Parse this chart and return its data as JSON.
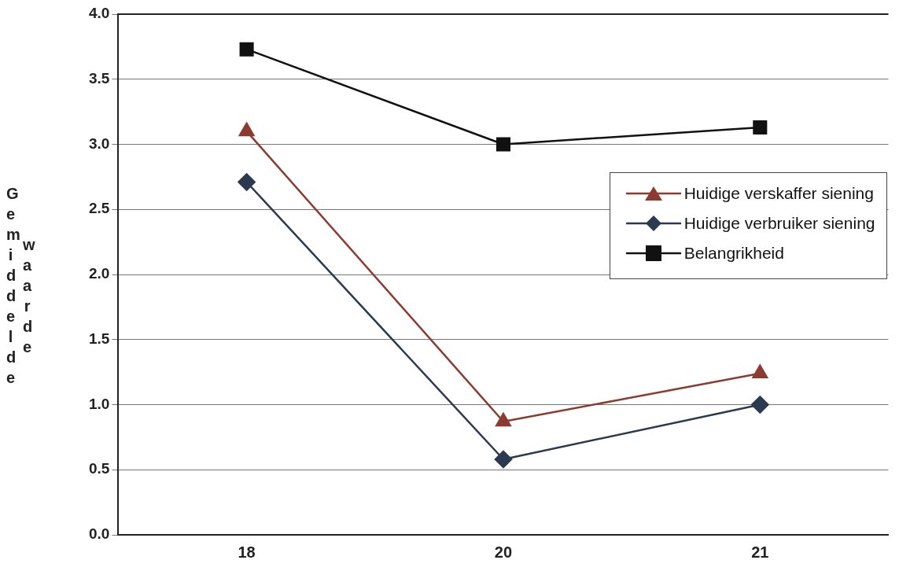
{
  "chart_data": {
    "type": "line",
    "ylabel": "Gemiddelde waarde",
    "categories": [
      "18",
      "20",
      "21"
    ],
    "series": [
      {
        "name": "Huidige verskaffer siening",
        "color": "#8c3b30",
        "marker": "triangle",
        "values": [
          3.1,
          0.87,
          1.24
        ]
      },
      {
        "name": "Huidige verbruiker siening",
        "color": "#2b3a50",
        "marker": "diamond",
        "values": [
          2.71,
          0.58,
          1.0
        ]
      },
      {
        "name": "Belangrikheid",
        "color": "#111111",
        "marker": "square",
        "values": [
          3.73,
          3.0,
          3.13
        ]
      }
    ],
    "ylim": [
      0,
      4
    ],
    "yticks": [
      {
        "value": 0,
        "label": "0.0"
      },
      {
        "value": 0.5,
        "label": "0.5"
      },
      {
        "value": 1,
        "label": "1.0"
      },
      {
        "value": 1.5,
        "label": "1.5"
      },
      {
        "value": 2,
        "label": "2.0"
      },
      {
        "value": 2.5,
        "label": "2.5"
      },
      {
        "value": 3,
        "label": "3.0"
      },
      {
        "value": 3.5,
        "label": "3.5"
      },
      {
        "value": 4,
        "label": "4.0"
      }
    ],
    "grid": "y",
    "legend": "right",
    "line_style": "solid"
  }
}
